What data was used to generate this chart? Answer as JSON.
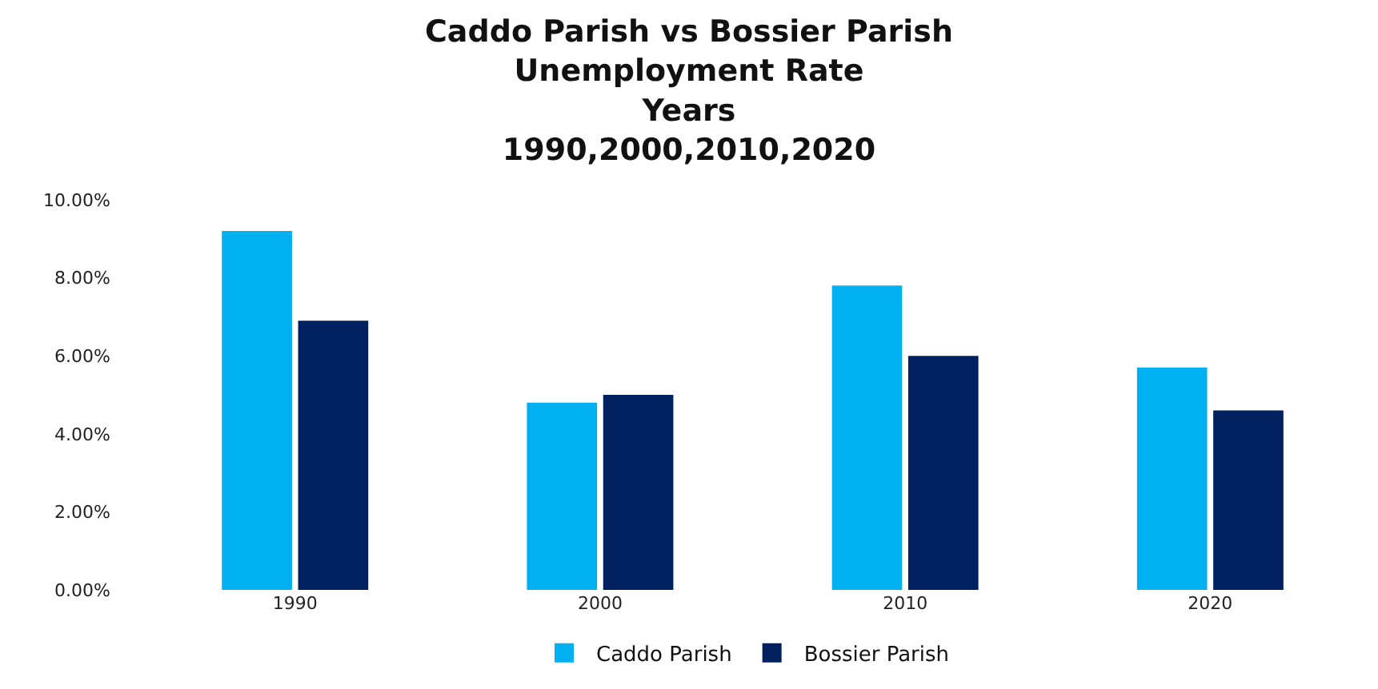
{
  "chart_data": {
    "type": "bar",
    "title": "Caddo Parish vs Bossier Parish\nUnemployment Rate\nYears\n1990,2000,2010,2020",
    "categories": [
      "1990",
      "2000",
      "2010",
      "2020"
    ],
    "series": [
      {
        "name": "Caddo Parish",
        "color": "#00b0f0",
        "values": [
          9.2,
          4.8,
          7.8,
          5.7
        ]
      },
      {
        "name": "Bossier Parish",
        "color": "#002060",
        "values": [
          6.9,
          5.0,
          6.0,
          4.6
        ]
      }
    ],
    "ylim": [
      0,
      10
    ],
    "yticks": [
      {
        "value": 0,
        "label": "0.00%"
      },
      {
        "value": 2,
        "label": "2.00%"
      },
      {
        "value": 4,
        "label": "4.00%"
      },
      {
        "value": 6,
        "label": "6.00%"
      },
      {
        "value": 8,
        "label": "8.00%"
      },
      {
        "value": 10,
        "label": "10.00%"
      }
    ],
    "grid": false,
    "legend": "bottom"
  }
}
